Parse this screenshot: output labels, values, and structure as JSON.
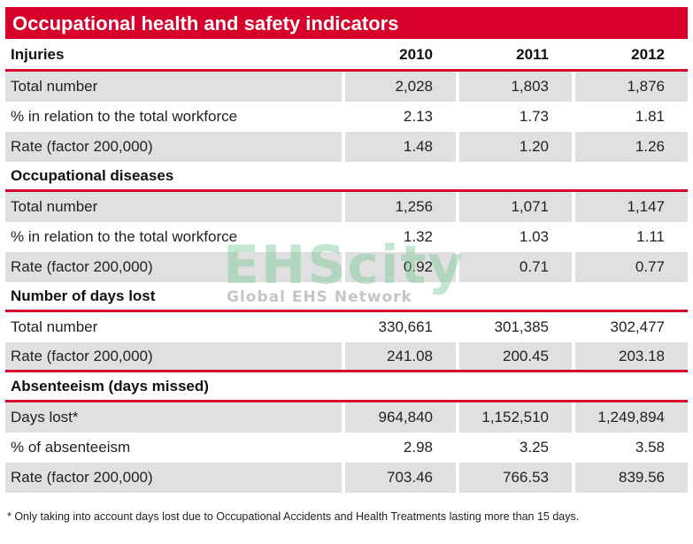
{
  "title": "Occupational health and safety indicators",
  "columns": [
    "Injuries",
    "2010",
    "2011",
    "2012"
  ],
  "sections": [
    {
      "heading": "Injuries",
      "rows": [
        {
          "label": "Total number",
          "values": [
            "2,028",
            "1,803",
            "1,876"
          ]
        },
        {
          "label": "% in relation to the total workforce",
          "values": [
            "2.13",
            "1.73",
            "1.81"
          ]
        },
        {
          "label": "Rate (factor 200,000)",
          "values": [
            "1.48",
            "1.20",
            "1.26"
          ]
        }
      ]
    },
    {
      "heading": "Occupational diseases",
      "rows": [
        {
          "label": "Total number",
          "values": [
            "1,256",
            "1,071",
            "1,147"
          ]
        },
        {
          "label": "% in relation to the total workforce",
          "values": [
            "1.32",
            "1.03",
            "1.11"
          ]
        },
        {
          "label": "Rate (factor 200,000)",
          "values": [
            "0.92",
            "0.71",
            "0.77"
          ]
        }
      ]
    },
    {
      "heading": "Number of days lost",
      "rows": [
        {
          "label": "Total number",
          "values": [
            "330,661",
            "301,385",
            "302,477"
          ]
        },
        {
          "label": "Rate (factor 200,000)",
          "values": [
            "241.08",
            "200.45",
            "203.18"
          ]
        }
      ]
    },
    {
      "heading": "Absenteeism (days missed)",
      "rows": [
        {
          "label": "Days lost*",
          "values": [
            "964,840",
            "1,152,510",
            "1,249,894"
          ]
        },
        {
          "label": "% of absenteeism",
          "values": [
            "2.98",
            "3.25",
            "3.58"
          ]
        },
        {
          "label": "Rate (factor 200,000)",
          "values": [
            "703.46",
            "766.53",
            "839.56"
          ]
        }
      ]
    }
  ],
  "footnote": "* Only taking into account days lost due to Occupational Accidents and Health Treatments lasting more than 15 days.",
  "watermark": {
    "main": "EHScity",
    "sub": "Global EHS Network"
  },
  "colors": {
    "accent": "#d6002a",
    "row_shade": "#e0e0e0"
  }
}
